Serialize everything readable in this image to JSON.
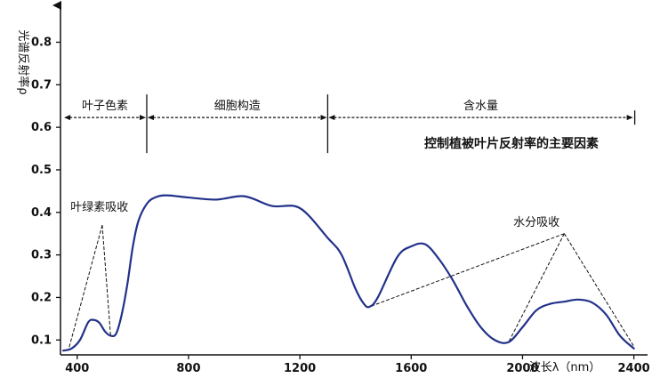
{
  "chart_data": {
    "type": "line",
    "title": "控制植被叶片反射率的主要因素",
    "xlabel": "波长λ（nm）",
    "ylabel": "光谱反射率ρ",
    "xlim": [
      340,
      2430
    ],
    "ylim": [
      0.065,
      0.87
    ],
    "x_ticks": [
      "400",
      "800",
      "1200",
      "1600",
      "2000",
      "2400"
    ],
    "y_ticks": [
      "0.1",
      "0.2",
      "0.3",
      "0.4",
      "0.5",
      "0.6",
      "0.7",
      "0.8"
    ],
    "grid": false,
    "series": [
      {
        "color": "#22318a",
        "x": [
          350,
          380,
          410,
          440,
          460,
          480,
          500,
          520,
          540,
          560,
          580,
          600,
          620,
          650,
          680,
          720,
          800,
          900,
          1000,
          1100,
          1200,
          1300,
          1350,
          1400,
          1430,
          1450,
          1480,
          1550,
          1600,
          1650,
          1700,
          1750,
          1800,
          1850,
          1900,
          1950,
          2000,
          2050,
          2100,
          2150,
          2200,
          2250,
          2300,
          2350,
          2400
        ],
        "y": [
          0.075,
          0.08,
          0.1,
          0.142,
          0.147,
          0.14,
          0.12,
          0.11,
          0.115,
          0.16,
          0.23,
          0.32,
          0.38,
          0.42,
          0.435,
          0.44,
          0.435,
          0.43,
          0.438,
          0.415,
          0.41,
          0.34,
          0.3,
          0.22,
          0.185,
          0.178,
          0.2,
          0.295,
          0.32,
          0.325,
          0.29,
          0.24,
          0.18,
          0.13,
          0.1,
          0.095,
          0.13,
          0.17,
          0.185,
          0.19,
          0.195,
          0.188,
          0.16,
          0.11,
          0.08
        ]
      }
    ],
    "regions": [
      {
        "label": "叶子色素",
        "x_start": 350,
        "x_end": 650
      },
      {
        "label": "细胞构造",
        "x_start": 650,
        "x_end": 1300
      },
      {
        "label": "含水量",
        "x_start": 1300,
        "x_end": 2400
      }
    ],
    "region_arrow_y": 0.623,
    "region_dividers": [
      650,
      1300
    ],
    "annotations": [
      {
        "label": "叶绿素吸收",
        "label_x": 480,
        "label_y": 0.395,
        "apex": [
          490,
          0.37
        ],
        "targets": [
          [
            370,
            0.08
          ],
          [
            520,
            0.11
          ]
        ]
      },
      {
        "label": "水分吸收",
        "label_x": 2050,
        "label_y": 0.36,
        "apex": [
          2150,
          0.35
        ],
        "targets": [
          [
            1450,
            0.178
          ],
          [
            1950,
            0.095
          ],
          [
            2400,
            0.085
          ]
        ]
      }
    ]
  }
}
